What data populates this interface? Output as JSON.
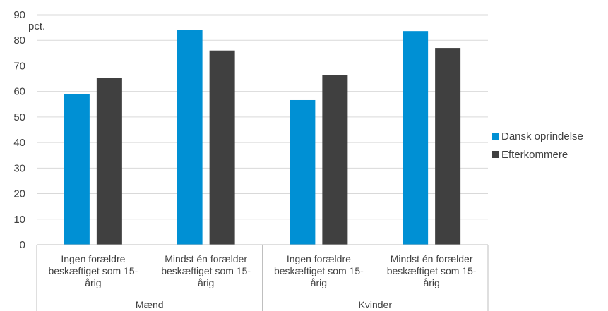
{
  "chart_data": {
    "type": "bar",
    "unit_label": "pct.",
    "ylim": [
      0,
      90
    ],
    "ytick_step": 10,
    "grid": true,
    "legend_position": "right",
    "groups": [
      {
        "label": "Mænd",
        "categories": [
          [
            "Ingen forældre",
            "beskæftiget som 15-",
            "årig"
          ],
          [
            "Mindst én forælder",
            "beskæftiget som 15-",
            "årig"
          ]
        ]
      },
      {
        "label": "Kvinder",
        "categories": [
          [
            "Ingen forældre",
            "beskæftiget som 15-",
            "årig"
          ],
          [
            "Mindst én forælder",
            "beskæftiget som 15-",
            "årig"
          ]
        ]
      }
    ],
    "series": [
      {
        "name": "Dansk oprindelse",
        "color": "#0090D4",
        "values": [
          59,
          84.2,
          56.6,
          83.6
        ]
      },
      {
        "name": "Efterkommere",
        "color": "#404040",
        "values": [
          65.2,
          76,
          66.3,
          77
        ]
      }
    ]
  }
}
